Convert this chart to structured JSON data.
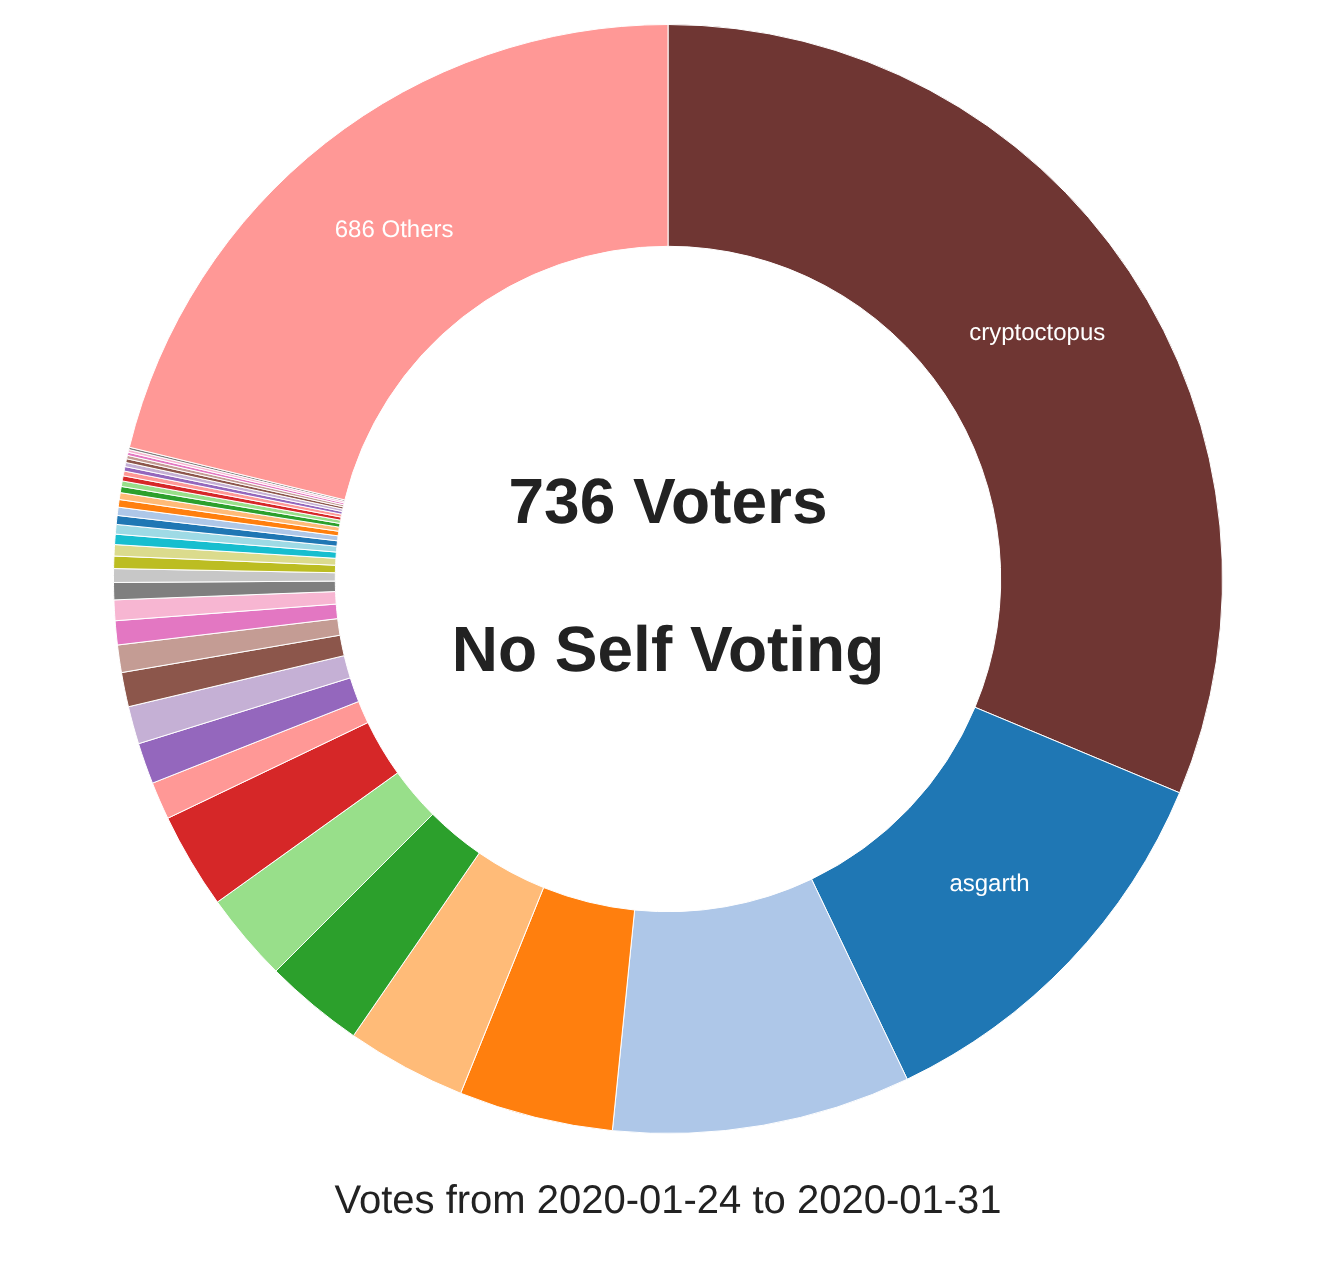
{
  "chart_data": {
    "type": "donut",
    "title": "Votes from 2020-01-24 to 2020-01-31",
    "annotations": [
      "736 Voters",
      "No Self Voting"
    ],
    "categories": [
      "cryptoctopus",
      "asgarth",
      null,
      null,
      null,
      null,
      null,
      null,
      null,
      null,
      null,
      null,
      null,
      null,
      null,
      null,
      null,
      null,
      null,
      null,
      null,
      null,
      null,
      null,
      null,
      null,
      null,
      null,
      null,
      null,
      null,
      null,
      null,
      null,
      null,
      null,
      "686 Others"
    ],
    "values": [
      31.3,
      11.6,
      8.7,
      4.5,
      3.5,
      2.9,
      2.6,
      2.8,
      1.1,
      1.2,
      1.1,
      1.0,
      0.8,
      0.7,
      0.6,
      0.5,
      0.4,
      0.36,
      0.33,
      0.3,
      0.28,
      0.26,
      0.24,
      0.22,
      0.2,
      0.18,
      0.16,
      0.15,
      0.14,
      0.13,
      0.12,
      0.11,
      0.1,
      0.09,
      0.08,
      0.07,
      21.18
    ],
    "colors": [
      "#6f3633",
      "#1f77b4",
      "#aec7e8",
      "#ff7f0e",
      "#ffbb78",
      "#2ca02c",
      "#98df8a",
      "#d62728",
      "#ff9896",
      "#9467bd",
      "#c5b0d5",
      "#8c564b",
      "#c49c94",
      "#e377c2",
      "#f7b6d2",
      "#7f7f7f",
      "#c7c7c7",
      "#bcbd22",
      "#dbdb8d",
      "#17becf",
      "#9edae5",
      "#1f77b4",
      "#aec7e8",
      "#ff7f0e",
      "#ffbb78",
      "#2ca02c",
      "#98df8a",
      "#d62728",
      "#ff9896",
      "#9467bd",
      "#c5b0d5",
      "#8c564b",
      "#c49c94",
      "#e377c2",
      "#f7b6d2",
      "#7f7f7f",
      "#ff9896"
    ],
    "legend": false
  }
}
